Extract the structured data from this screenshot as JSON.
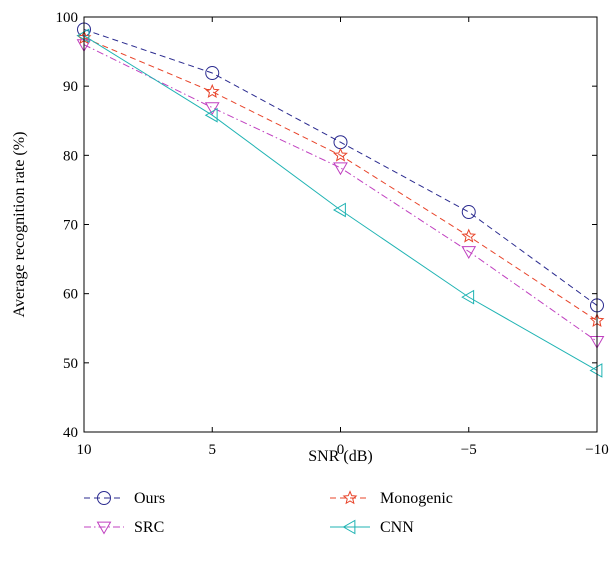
{
  "chart_data": {
    "type": "line",
    "xlabel": "SNR (dB)",
    "ylabel": "Average recognition rate (%)",
    "x": [
      10,
      5,
      0,
      -5,
      -10
    ],
    "x_tick_labels": [
      "10",
      "5",
      "0",
      "−5",
      "−10"
    ],
    "xlim": [
      10,
      -10
    ],
    "ylim": [
      40,
      100
    ],
    "y_ticks": [
      40,
      50,
      60,
      70,
      80,
      90,
      100
    ],
    "grid": false,
    "legend_position": "bottom",
    "series": [
      {
        "name": "Ours",
        "values": [
          98.2,
          91.9,
          81.9,
          71.8,
          58.3
        ],
        "color": "#2b2b8f",
        "dash": "dashed",
        "marker": "circle"
      },
      {
        "name": "Monogenic",
        "values": [
          97.0,
          89.2,
          80.0,
          68.3,
          56.1
        ],
        "color": "#e8442a",
        "dash": "dashed",
        "marker": "star"
      },
      {
        "name": "SRC",
        "values": [
          96.0,
          86.9,
          78.2,
          66.1,
          53.1
        ],
        "color": "#c040c0",
        "dash": "dashdot",
        "marker": "triangle-down"
      },
      {
        "name": "CNN",
        "values": [
          97.3,
          85.8,
          72.1,
          59.5,
          48.9
        ],
        "color": "#1fb3b3",
        "dash": "solid",
        "marker": "triangle-left"
      }
    ]
  }
}
